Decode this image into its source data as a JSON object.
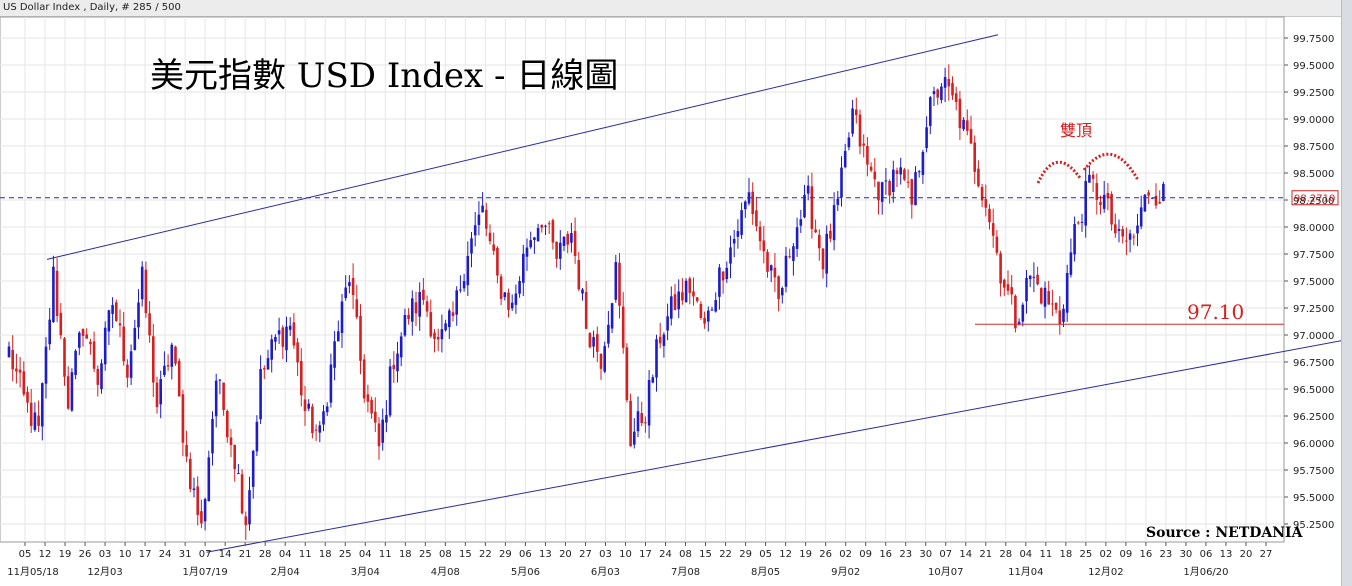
{
  "header": {
    "text": "US Dollar Index , Daily, # 285 / 500"
  },
  "chart_data": {
    "type": "candlestick",
    "title": "美元指數 USD Index - 日線圖",
    "source": "Source : NETDANIA",
    "ylim": [
      95.1,
      99.9
    ],
    "y_ticks": [
      "99.7500",
      "99.5000",
      "99.2500",
      "99.0000",
      "98.7500",
      "98.5000",
      "98.2500",
      "98.0000",
      "97.7500",
      "97.5000",
      "97.2500",
      "97.0000",
      "96.7500",
      "96.5000",
      "96.2500",
      "96.0000",
      "95.7500",
      "95.5000",
      "95.2500"
    ],
    "x_day_ticks": [
      "05",
      "12",
      "19",
      "26",
      "03",
      "10",
      "17",
      "24",
      "31",
      "07",
      "14",
      "21",
      "28",
      "04",
      "11",
      "18",
      "25",
      "04",
      "11",
      "18",
      "25",
      "08",
      "15",
      "22",
      "29",
      "06",
      "13",
      "20",
      "27",
      "03",
      "10",
      "17",
      "24",
      "08",
      "15",
      "22",
      "29",
      "05",
      "12",
      "19",
      "26",
      "02",
      "09",
      "16",
      "23",
      "30",
      "07",
      "14",
      "21",
      "28",
      "04",
      "11",
      "18",
      "25",
      "02",
      "09",
      "16",
      "23",
      "30",
      "06",
      "13",
      "20",
      "27"
    ],
    "x_month_ticks": [
      "11月05/18",
      "12月03",
      "1月07/19",
      "2月04",
      "3月04",
      "4月08",
      "5月06",
      "6月03",
      "7月08",
      "8月05",
      "9月02",
      "10月07",
      "11月04",
      "12月02",
      "1月06/20"
    ],
    "current_price": "98.2710",
    "current_value": 98.271,
    "support_level": 97.1,
    "support_label": "97.10",
    "pattern_label": "雙頂",
    "channel": {
      "upper": [
        {
          "bar": 0,
          "value": 97.7
        },
        {
          "bar": 270,
          "value": 99.78
        }
      ],
      "lower": [
        {
          "bar": 48,
          "value": 95.1
        },
        {
          "bar": 360,
          "value": 96.95
        }
      ]
    },
    "colors": {
      "up": "#1c1cc8",
      "down": "#d42020",
      "channel": "#2a2aa0",
      "support": "#c83030",
      "price_line": "#2a2aa0"
    },
    "anchors": [
      {
        "bar": 0,
        "value": 96.85
      },
      {
        "bar": 4,
        "value": 96.4
      },
      {
        "bar": 8,
        "value": 96.1
      },
      {
        "bar": 12,
        "value": 97.55
      },
      {
        "bar": 16,
        "value": 96.4
      },
      {
        "bar": 20,
        "value": 97.1
      },
      {
        "bar": 24,
        "value": 96.6
      },
      {
        "bar": 28,
        "value": 97.3
      },
      {
        "bar": 32,
        "value": 96.7
      },
      {
        "bar": 36,
        "value": 97.5
      },
      {
        "bar": 40,
        "value": 96.35
      },
      {
        "bar": 44,
        "value": 96.9
      },
      {
        "bar": 48,
        "value": 95.85
      },
      {
        "bar": 52,
        "value": 95.2
      },
      {
        "bar": 56,
        "value": 96.6
      },
      {
        "bar": 60,
        "value": 96.05
      },
      {
        "bar": 64,
        "value": 95.3
      },
      {
        "bar": 68,
        "value": 96.6
      },
      {
        "bar": 72,
        "value": 96.95
      },
      {
        "bar": 76,
        "value": 97.1
      },
      {
        "bar": 80,
        "value": 96.3
      },
      {
        "bar": 84,
        "value": 96.05
      },
      {
        "bar": 88,
        "value": 96.9
      },
      {
        "bar": 92,
        "value": 97.55
      },
      {
        "bar": 96,
        "value": 96.5
      },
      {
        "bar": 100,
        "value": 95.95
      },
      {
        "bar": 104,
        "value": 96.8
      },
      {
        "bar": 108,
        "value": 97.2
      },
      {
        "bar": 112,
        "value": 97.35
      },
      {
        "bar": 116,
        "value": 96.9
      },
      {
        "bar": 120,
        "value": 97.15
      },
      {
        "bar": 124,
        "value": 97.8
      },
      {
        "bar": 128,
        "value": 98.15
      },
      {
        "bar": 132,
        "value": 97.5
      },
      {
        "bar": 136,
        "value": 97.25
      },
      {
        "bar": 140,
        "value": 97.85
      },
      {
        "bar": 144,
        "value": 98.1
      },
      {
        "bar": 148,
        "value": 97.7
      },
      {
        "bar": 152,
        "value": 97.95
      },
      {
        "bar": 156,
        "value": 97.1
      },
      {
        "bar": 160,
        "value": 96.8
      },
      {
        "bar": 164,
        "value": 97.6
      },
      {
        "bar": 168,
        "value": 96.05
      },
      {
        "bar": 172,
        "value": 96.3
      },
      {
        "bar": 176,
        "value": 97.0
      },
      {
        "bar": 180,
        "value": 97.3
      },
      {
        "bar": 184,
        "value": 97.45
      },
      {
        "bar": 188,
        "value": 97.05
      },
      {
        "bar": 192,
        "value": 97.55
      },
      {
        "bar": 196,
        "value": 97.9
      },
      {
        "bar": 200,
        "value": 98.3
      },
      {
        "bar": 204,
        "value": 97.75
      },
      {
        "bar": 208,
        "value": 97.3
      },
      {
        "bar": 212,
        "value": 97.95
      },
      {
        "bar": 216,
        "value": 98.25
      },
      {
        "bar": 220,
        "value": 97.7
      },
      {
        "bar": 224,
        "value": 98.2
      },
      {
        "bar": 228,
        "value": 99.05
      },
      {
        "bar": 232,
        "value": 98.55
      },
      {
        "bar": 236,
        "value": 98.3
      },
      {
        "bar": 240,
        "value": 98.55
      },
      {
        "bar": 244,
        "value": 98.2
      },
      {
        "bar": 248,
        "value": 99.0
      },
      {
        "bar": 252,
        "value": 99.35
      },
      {
        "bar": 256,
        "value": 99.1
      },
      {
        "bar": 260,
        "value": 98.7
      },
      {
        "bar": 264,
        "value": 98.25
      },
      {
        "bar": 268,
        "value": 97.6
      },
      {
        "bar": 272,
        "value": 97.15
      },
      {
        "bar": 276,
        "value": 97.55
      },
      {
        "bar": 280,
        "value": 97.35
      },
      {
        "bar": 284,
        "value": 97.15
      },
      {
        "bar": 288,
        "value": 97.95
      },
      {
        "bar": 292,
        "value": 98.4
      },
      {
        "bar": 296,
        "value": 98.25
      },
      {
        "bar": 300,
        "value": 97.85
      },
      {
        "bar": 304,
        "value": 97.9
      },
      {
        "bar": 308,
        "value": 98.35
      },
      {
        "bar": 312,
        "value": 98.3
      }
    ]
  }
}
